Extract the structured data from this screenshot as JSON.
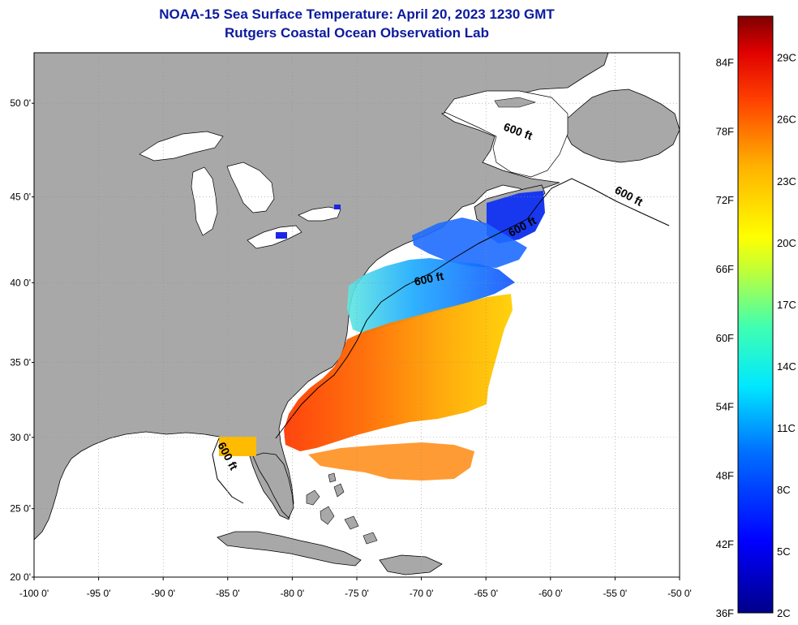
{
  "header": {
    "title": "NOAA-15 Sea Surface Temperature:  April 20, 2023 1230 GMT",
    "subtitle": "Rutgers Coastal Ocean Observation Lab"
  },
  "map": {
    "lat_range": [
      20,
      52.5
    ],
    "lon_range": [
      -100,
      -50
    ],
    "lat_ticks": [
      "50 0'",
      "45 0'",
      "40 0'",
      "35 0'",
      "30 0'",
      "25 0'",
      "20 0'"
    ],
    "lon_ticks": [
      "-100 0'",
      "-95 0'",
      "-90 0'",
      "-85 0'",
      "-80 0'",
      "-75 0'",
      "-70 0'",
      "-65 0'",
      "-60 0'",
      "-55 0'",
      "-50 0'"
    ],
    "contour_labels": [
      "600 ft",
      "600 ft",
      "600 ft",
      "600 ft",
      "600 ft"
    ],
    "colors": {
      "land": "#a8a8a8",
      "water": "#ffffff",
      "coast": "#000000",
      "grid": "#8f8f8f"
    }
  },
  "colorbar": {
    "fahrenheit": [
      "84F",
      "78F",
      "72F",
      "66F",
      "60F",
      "54F",
      "48F",
      "42F",
      "36F"
    ],
    "celsius": [
      "29C",
      "26C",
      "23C",
      "20C",
      "17C",
      "14C",
      "11C",
      "8C",
      "5C",
      "2C"
    ]
  }
}
